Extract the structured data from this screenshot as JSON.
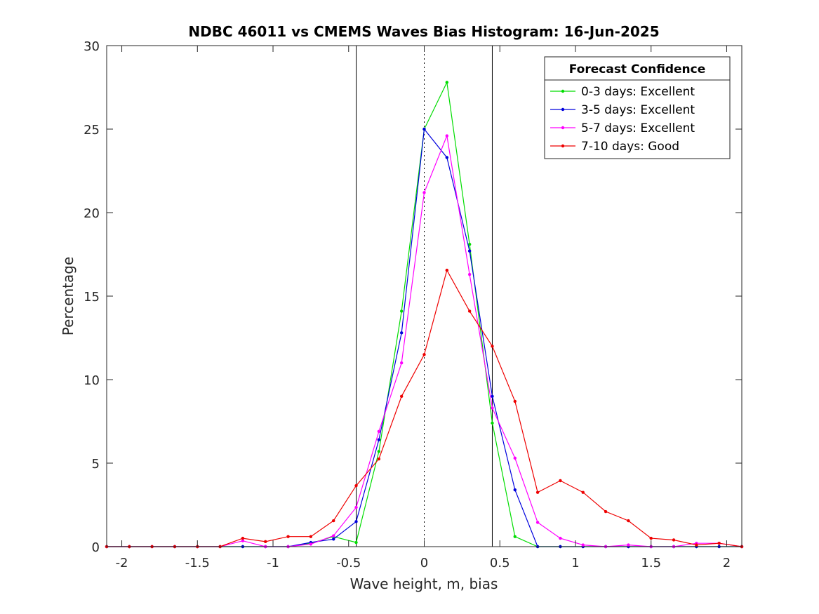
{
  "chart_data": {
    "type": "line",
    "title": "NDBC 46011 vs CMEMS Waves Bias Histogram: 16-Jun-2025",
    "xlabel": "Wave height, m, bias",
    "ylabel": "Percentage",
    "xlim": [
      -2.1,
      2.1
    ],
    "ylim": [
      0,
      30
    ],
    "xticks": [
      -2,
      -1.5,
      -1,
      -0.5,
      0,
      0.5,
      1,
      1.5,
      2
    ],
    "xtick_labels": [
      "-2",
      "-1.5",
      "-1",
      "-0.5",
      "0",
      "0.5",
      "1",
      "1.5",
      "2"
    ],
    "yticks": [
      0,
      5,
      10,
      15,
      20,
      25,
      30
    ],
    "ytick_labels": [
      "0",
      "5",
      "10",
      "15",
      "20",
      "25",
      "30"
    ],
    "grid": false,
    "legend": {
      "title": "Forecast Confidence",
      "placement": "top-right"
    },
    "reference_lines": [
      {
        "x": -0.45,
        "style": "solid",
        "color": "#000000"
      },
      {
        "x": 0,
        "style": "dotted",
        "color": "#000000"
      },
      {
        "x": 0.45,
        "style": "solid",
        "color": "#000000"
      }
    ],
    "x": [
      -2.1,
      -1.95,
      -1.8,
      -1.65,
      -1.5,
      -1.35,
      -1.2,
      -1.05,
      -0.9,
      -0.75,
      -0.6,
      -0.45,
      -0.3,
      -0.15,
      0,
      0.15,
      0.3,
      0.45,
      0.6,
      0.75,
      0.9,
      1.05,
      1.2,
      1.35,
      1.5,
      1.65,
      1.8,
      1.95,
      2.1
    ],
    "series": [
      {
        "name": "0-3 days: Excellent",
        "color": "#00dd00",
        "values": [
          0,
          0,
          0,
          0,
          0,
          0,
          0,
          0,
          0,
          0.2,
          0.6,
          0.25,
          5.7,
          14.1,
          25.0,
          27.8,
          18.1,
          7.4,
          0.6,
          0,
          0,
          0,
          0,
          0,
          0,
          0,
          0,
          0,
          0
        ]
      },
      {
        "name": "3-5 days: Excellent",
        "color": "#0000dd",
        "values": [
          0,
          0,
          0,
          0,
          0,
          0,
          0,
          0,
          0,
          0.25,
          0.45,
          1.5,
          6.4,
          12.8,
          25.0,
          23.3,
          17.7,
          9.0,
          3.4,
          0,
          0,
          0,
          0,
          0,
          0,
          0,
          0,
          0,
          0
        ]
      },
      {
        "name": "5-7 days: Excellent",
        "color": "#ff00ff",
        "values": [
          0,
          0,
          0,
          0,
          0,
          0,
          0.35,
          0,
          0,
          0.15,
          0.65,
          2.35,
          6.9,
          11.0,
          21.2,
          24.6,
          16.3,
          8.3,
          5.3,
          1.45,
          0.5,
          0.1,
          0,
          0.1,
          0,
          0,
          0.2,
          0.2,
          0
        ]
      },
      {
        "name": "7-10 days: Good",
        "color": "#ee0000",
        "values": [
          0,
          0,
          0,
          0,
          0,
          0,
          0.5,
          0.3,
          0.6,
          0.6,
          1.55,
          3.65,
          5.25,
          9.0,
          11.5,
          16.55,
          14.1,
          12.0,
          8.7,
          3.25,
          3.95,
          3.25,
          2.1,
          1.55,
          0.5,
          0.4,
          0.1,
          0.2,
          0
        ]
      }
    ]
  }
}
